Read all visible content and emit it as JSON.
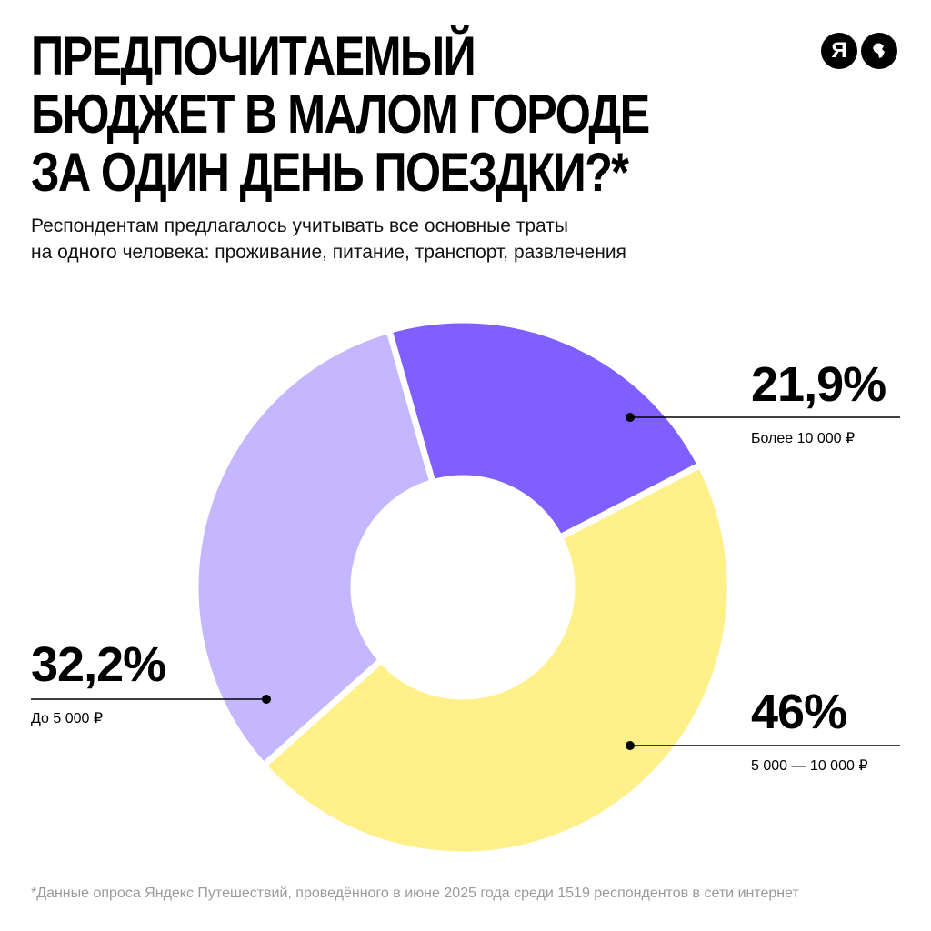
{
  "title_lines": [
    "ПРЕДПОЧИТАЕМЫЙ",
    "БЮДЖЕТ В МАЛОМ ГОРОДЕ",
    "ЗА ОДИН ДЕНЬ ПОЕЗДКИ?*"
  ],
  "subtitle_lines": [
    "Респондентам предлагалось учитывать все основные траты",
    "на одного человека: проживание, питание, транспорт, развлечения"
  ],
  "logo": {
    "letter": "Я",
    "icon": "globe-icon"
  },
  "footnote": "*Данные опроса Яндекс Путешествий, проведённого в июне 2025 года среди 1519 респондентов в сети интернет",
  "chart_data": {
    "type": "pie",
    "variant": "donut",
    "categories": [
      "Более 10 000 ₽",
      "5 000 — 10 000 ₽",
      "До 5 000 ₽"
    ],
    "values": [
      21.9,
      46,
      32.2
    ],
    "value_labels": [
      "21,9%",
      "46%",
      "32,2%"
    ],
    "colors": [
      "#7f5fff",
      "#fff08a",
      "#c4b6ff"
    ]
  }
}
